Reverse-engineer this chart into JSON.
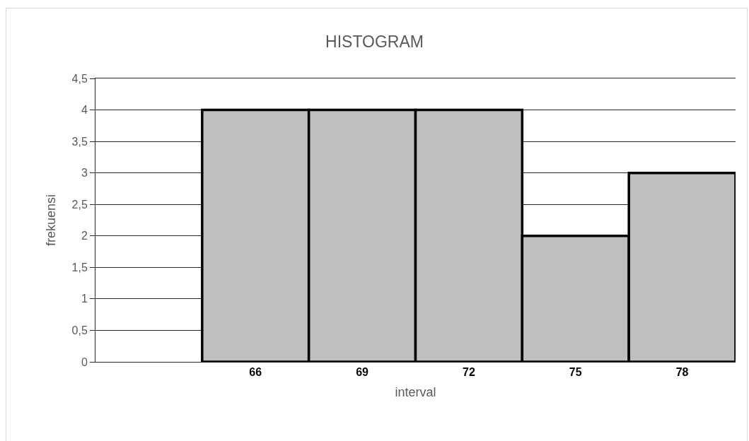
{
  "chart_data": {
    "type": "bar",
    "title": "HISTOGRAM",
    "xlabel": "interval",
    "ylabel": "frekuensi",
    "categories": [
      null,
      "66",
      "69",
      "72",
      "75",
      "78"
    ],
    "values": [
      null,
      4,
      4,
      4,
      2,
      3
    ],
    "color": "#bfbfbf",
    "ylim": [
      0,
      4.5
    ],
    "yticks": [
      0,
      {
        "value": 0.5,
        "label": "0,5"
      },
      1,
      {
        "value": 1.5,
        "label": "1,5"
      },
      2,
      {
        "value": 2.5,
        "label": "2,5"
      },
      3,
      {
        "value": 3.5,
        "label": "3,5"
      },
      4,
      {
        "value": 4.5,
        "label": "4,5"
      }
    ],
    "grid": "y"
  }
}
